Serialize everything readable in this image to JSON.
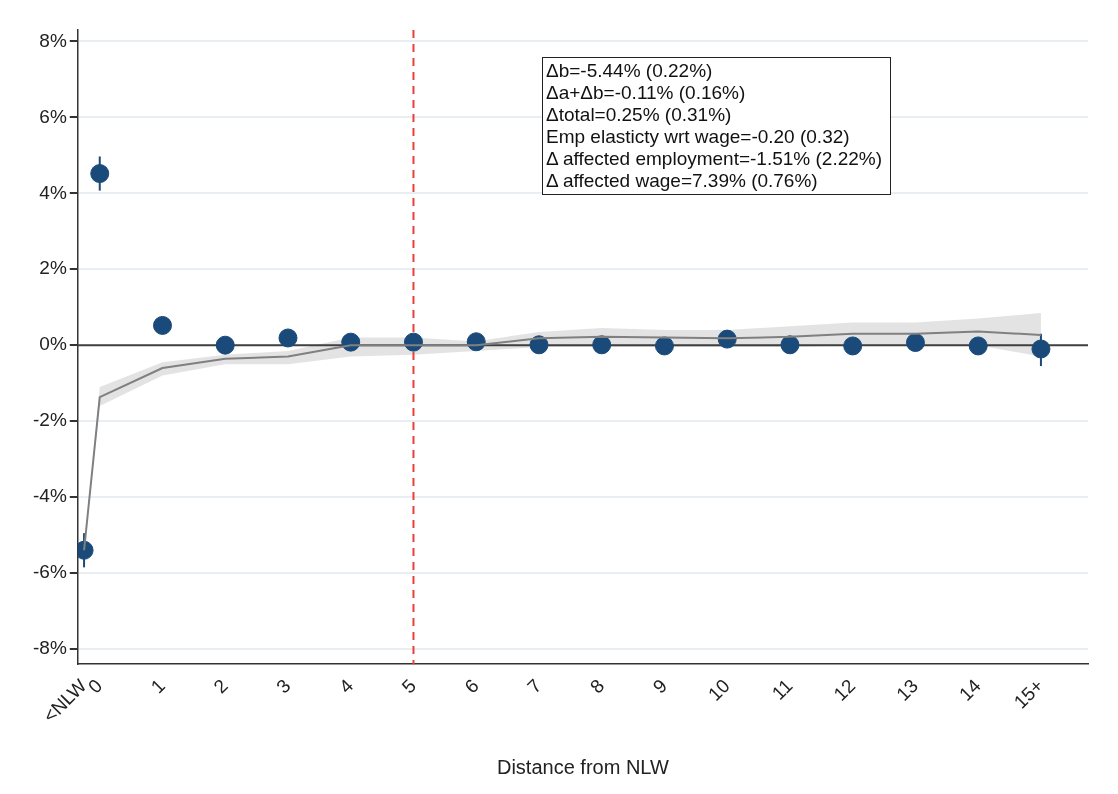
{
  "chart_data": {
    "type": "scatter",
    "xlabel": "Distance from NLW",
    "x": [
      -0.25,
      0,
      1,
      2,
      3,
      4,
      5,
      6,
      7,
      8,
      9,
      10,
      11,
      12,
      13,
      14,
      15
    ],
    "xlim": [
      -0.35,
      15.75
    ],
    "xticks": [
      {
        "value": -0.25,
        "label": "<NLW"
      },
      0,
      1,
      2,
      3,
      4,
      5,
      6,
      7,
      8,
      9,
      10,
      11,
      12,
      13,
      14,
      {
        "value": 15,
        "label": "15+"
      }
    ],
    "ylim": [
      -8.4,
      8.3
    ],
    "yticks": [
      {
        "value": -8,
        "label": "-8%"
      },
      {
        "value": -6,
        "label": "-6%"
      },
      {
        "value": -4,
        "label": "-4%"
      },
      {
        "value": -2,
        "label": "-2%"
      },
      {
        "value": 0,
        "label": "0%"
      },
      {
        "value": 2,
        "label": "2%"
      },
      {
        "value": 4,
        "label": "4%"
      },
      {
        "value": 6,
        "label": "6%"
      },
      {
        "value": 8,
        "label": "8%"
      }
    ],
    "grid": "y",
    "series": [
      {
        "type": "line",
        "color": "#808080",
        "marker": "none",
        "values": [
          -5.4,
          -1.37,
          -0.6,
          -0.36,
          -0.3,
          0,
          0,
          0,
          0.18,
          0.22,
          0.2,
          0.18,
          0.22,
          0.3,
          0.3,
          0.36,
          0.27
        ],
        "lower": [
          -5.4,
          -1.6,
          -0.8,
          -0.5,
          -0.5,
          -0.3,
          -0.25,
          -0.15,
          -0.05,
          -0.05,
          -0.05,
          -0.05,
          -0.05,
          0,
          0,
          0,
          -0.3
        ],
        "upper": [
          -5.4,
          -1.1,
          -0.45,
          -0.25,
          -0.15,
          0.2,
          0.2,
          0.1,
          0.35,
          0.45,
          0.4,
          0.4,
          0.5,
          0.6,
          0.6,
          0.7,
          0.85
        ]
      },
      {
        "type": "scatter",
        "color": "#1a4a7a",
        "marker": "circle",
        "values": [
          -5.4,
          4.52,
          0.52,
          0,
          0.19,
          0.08,
          0.08,
          0.09,
          0.01,
          0.01,
          -0.02,
          0.16,
          0.01,
          -0.02,
          0.07,
          -0.02,
          -0.1
        ],
        "errors": [
          0.45,
          0.45,
          null,
          null,
          null,
          null,
          null,
          null,
          null,
          null,
          null,
          null,
          null,
          null,
          null,
          null,
          [
            -0.55,
            0.3
          ]
        ]
      }
    ],
    "ref_lines": [
      {
        "axis": "y",
        "value": 0,
        "color": "#404040",
        "line_style": "solid"
      },
      {
        "axis": "x",
        "value": 5,
        "color": "#e8413c",
        "line_style": "dashed"
      }
    ],
    "annotations": [
      "Δb=-5.44% (0.22%)",
      "Δa+Δb=-0.11% (0.16%)",
      "Δtotal=0.25% (0.31%)",
      "Emp elasticty wrt wage=-0.20 (0.32)",
      "Δ affected employment=-1.51% (2.22%)",
      "Δ affected wage=7.39% (0.76%)"
    ]
  }
}
